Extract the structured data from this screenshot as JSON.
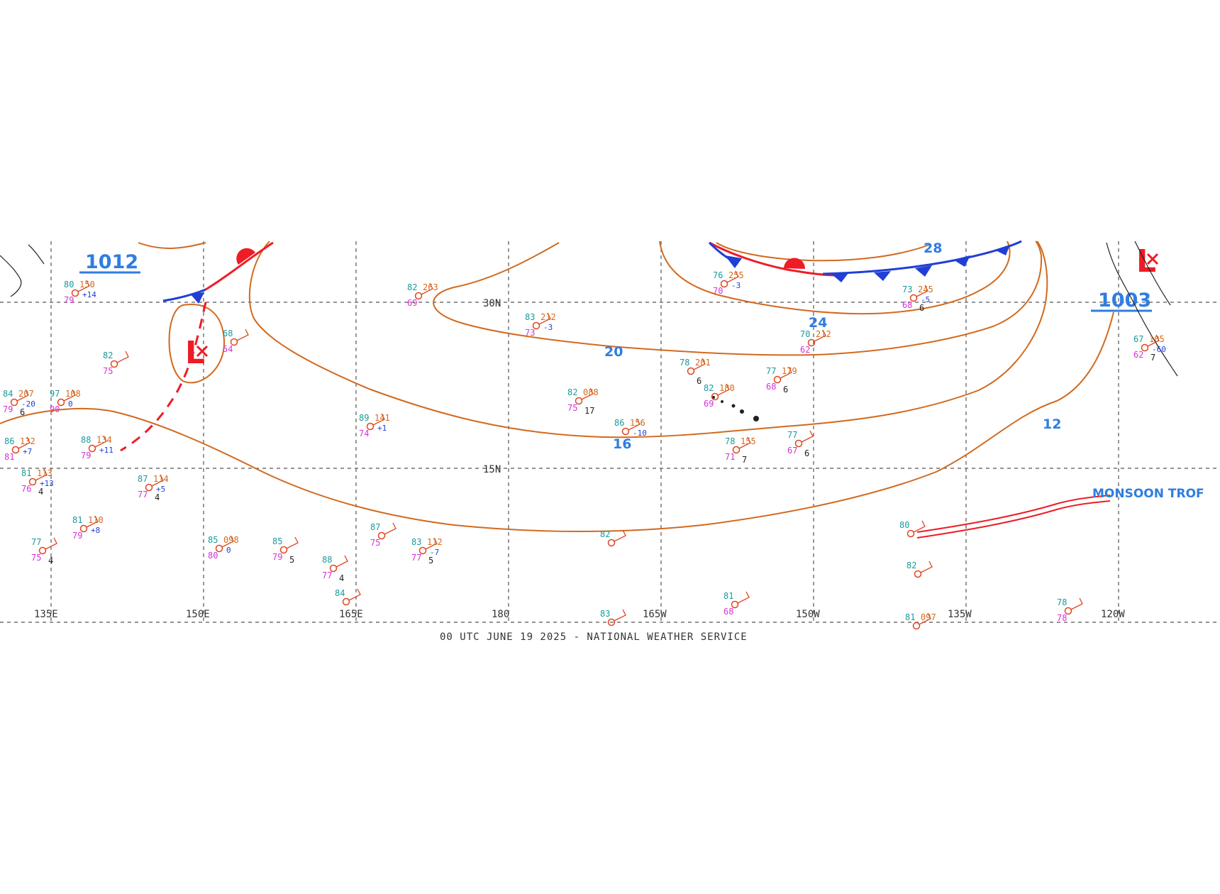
{
  "map": {
    "footer": "00 UTC JUNE 19 2025 - NATIONAL WEATHER SERVICE",
    "latitudes": [
      {
        "label": "30N"
      },
      {
        "label": "15N"
      }
    ],
    "longitudes": [
      {
        "label": "135E"
      },
      {
        "label": "150E"
      },
      {
        "label": "165E"
      },
      {
        "label": "180"
      },
      {
        "label": "165W"
      },
      {
        "label": "150W"
      },
      {
        "label": "135W"
      },
      {
        "label": "120W"
      }
    ],
    "isobar_labels": [
      "20",
      "24",
      "28",
      "16",
      "12"
    ],
    "centers": [
      {
        "type": "L",
        "value": "1012"
      },
      {
        "type": "L",
        "value": "1003"
      }
    ],
    "feature_label": "MONSOON TROF",
    "colors": {
      "isobar": "#d2691e",
      "isobar_label": "#2f7de1",
      "cold_front": "#1f3fd6",
      "warm_front": "#ee1c25",
      "trough": "#ee1c25",
      "low_center": "#ee1c25"
    },
    "observations": [
      {
        "t": "82",
        "p": "263",
        "d": "69"
      },
      {
        "t": "83",
        "p": "212",
        "tend": "-3",
        "d": "73"
      },
      {
        "t": "76",
        "p": "255",
        "tend": "-3",
        "d": "70"
      },
      {
        "t": "73",
        "p": "245",
        "tend": "-5",
        "d": "68",
        "v": "6"
      },
      {
        "t": "70",
        "p": "212",
        "d": "62"
      },
      {
        "t": "78",
        "p": "201",
        "v": "6"
      },
      {
        "t": "77",
        "p": "179",
        "d": "68",
        "v": "6"
      },
      {
        "t": "82",
        "p": "180",
        "d": "69"
      },
      {
        "t": "82",
        "p": "088",
        "d": "75",
        "v": "17"
      },
      {
        "t": "86",
        "p": "156",
        "tend": "-10"
      },
      {
        "t": "78",
        "p": "155",
        "d": "71",
        "v": "7"
      },
      {
        "t": "77",
        "d": "67",
        "v": "6"
      },
      {
        "t": "89",
        "p": "141",
        "tend": "+1",
        "d": "74"
      },
      {
        "t": "88",
        "p": "134",
        "tend": "+11",
        "d": "79"
      },
      {
        "t": "86",
        "p": "132",
        "tend": "+7",
        "d": "81"
      },
      {
        "t": "84",
        "p": "207",
        "tend": "-20",
        "d": "79",
        "v": "6"
      },
      {
        "t": "97",
        "p": "108",
        "tend": "0",
        "d": "90"
      },
      {
        "t": "82",
        "d": "75"
      },
      {
        "t": "68",
        "d": "54"
      },
      {
        "t": "80",
        "p": "150",
        "tend": "+14",
        "d": "79"
      },
      {
        "t": "81",
        "p": "110",
        "tend": "+8",
        "d": "79"
      },
      {
        "t": "81",
        "p": "113",
        "tend": "+13",
        "d": "76",
        "v": "4"
      },
      {
        "t": "87",
        "p": "114",
        "tend": "+5",
        "d": "77",
        "v": "4"
      },
      {
        "t": "85",
        "p": "098",
        "tend": "0",
        "d": "80"
      },
      {
        "t": "85",
        "d": "79",
        "v": "5"
      },
      {
        "t": "87",
        "d": "75"
      },
      {
        "t": "83",
        "p": "112",
        "tend": "-7",
        "d": "77",
        "v": "5"
      },
      {
        "t": "88",
        "d": "77",
        "v": "4"
      },
      {
        "t": "84"
      },
      {
        "t": "77",
        "d": "75",
        "v": "4"
      },
      {
        "t": "82"
      },
      {
        "t": "80"
      },
      {
        "t": "82"
      },
      {
        "t": "81",
        "d": "68"
      },
      {
        "t": "83"
      },
      {
        "t": "81",
        "p": "097"
      },
      {
        "t": "78",
        "d": "78"
      },
      {
        "t": "67",
        "p": "105",
        "tend": "-60",
        "d": "62",
        "v": "7"
      }
    ]
  }
}
